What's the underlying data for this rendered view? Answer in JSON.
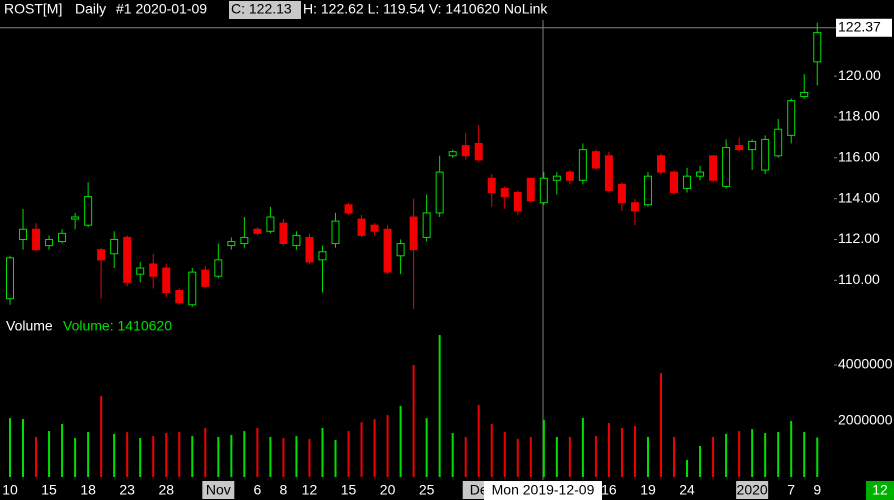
{
  "header": {
    "symbol": "ROST[M]",
    "period": "Daily",
    "bar": "#1 2020-01-09",
    "close": "C: 122.13",
    "rest": "H: 122.62 L: 119.54 V: 1410620 NoLink"
  },
  "corner_label": "12",
  "chart_data": [
    {
      "type": "candlestick",
      "up_color": "#00e000",
      "down_color": "#f00000",
      "ylim": [
        108.3,
        122.75
      ],
      "yticks": [
        {
          "value": 110,
          "label": "110.00"
        },
        {
          "value": 112,
          "label": "112.00"
        },
        {
          "value": 114,
          "label": "114.00"
        },
        {
          "value": 116,
          "label": "116.00"
        },
        {
          "value": 118,
          "label": "118.00"
        },
        {
          "value": 120,
          "label": "120.00"
        }
      ],
      "crosshair_price": {
        "value": 122.37,
        "label": "122.37"
      },
      "open": [
        109.1,
        112.0,
        112.5,
        111.7,
        111.9,
        113.0,
        112.7,
        111.5,
        111.3,
        112.1,
        110.3,
        110.8,
        110.6,
        109.5,
        108.8,
        110.5,
        110.2,
        111.7,
        111.8,
        112.5,
        112.4,
        112.8,
        111.7,
        112.1,
        111.0,
        111.8,
        113.7,
        113.0,
        112.7,
        112.5,
        111.2,
        113.1,
        112.1,
        113.3,
        116.1,
        116.6,
        116.7,
        115.0,
        114.5,
        114.3,
        115.0,
        113.8,
        114.9,
        115.3,
        114.9,
        116.3,
        116.1,
        114.7,
        113.8,
        113.7,
        116.1,
        115.3,
        114.5,
        115.1,
        116.1,
        114.6,
        116.6,
        116.4,
        115.4,
        116.1,
        117.1,
        119.0,
        120.7
      ],
      "high": [
        111.2,
        113.5,
        112.8,
        112.2,
        112.5,
        113.3,
        114.8,
        111.6,
        112.4,
        112.2,
        110.9,
        111.3,
        110.8,
        109.6,
        110.6,
        110.7,
        111.8,
        112.1,
        113.1,
        112.6,
        113.6,
        113.0,
        112.4,
        112.3,
        111.7,
        113.3,
        113.8,
        113.2,
        112.8,
        112.7,
        112.0,
        114.0,
        114.2,
        116.1,
        116.4,
        117.2,
        117.6,
        115.2,
        114.6,
        114.4,
        115.0,
        115.3,
        115.3,
        115.4,
        116.7,
        116.4,
        116.3,
        114.8,
        114.0,
        115.3,
        116.2,
        115.4,
        115.5,
        115.6,
        116.1,
        116.9,
        117.0,
        116.9,
        117.1,
        117.9,
        118.9,
        120.1,
        122.62
      ],
      "low": [
        108.8,
        111.5,
        111.4,
        111.5,
        111.8,
        112.5,
        112.6,
        109.1,
        110.6,
        109.7,
        109.9,
        109.6,
        109.2,
        108.8,
        108.7,
        109.6,
        110.1,
        111.5,
        111.6,
        112.2,
        112.3,
        111.7,
        111.5,
        110.8,
        109.4,
        111.6,
        113.2,
        112.1,
        112.2,
        110.3,
        110.3,
        108.6,
        111.9,
        113.1,
        116.0,
        115.9,
        115.8,
        113.6,
        113.5,
        113.2,
        113.8,
        113.7,
        114.2,
        114.7,
        114.7,
        115.4,
        114.3,
        113.4,
        112.7,
        113.6,
        115.2,
        114.2,
        114.3,
        114.9,
        114.8,
        114.5,
        116.3,
        115.4,
        115.2,
        116.0,
        116.7,
        118.9,
        119.54
      ],
      "close": [
        111.1,
        112.5,
        111.5,
        112.0,
        112.3,
        113.1,
        114.1,
        111.0,
        112.0,
        109.9,
        110.6,
        110.2,
        109.4,
        108.9,
        110.4,
        109.7,
        111.0,
        111.9,
        112.1,
        112.3,
        113.1,
        111.8,
        112.2,
        110.9,
        111.4,
        112.9,
        113.3,
        112.2,
        112.4,
        110.4,
        111.8,
        111.5,
        113.3,
        115.3,
        116.3,
        116.1,
        115.9,
        114.3,
        114.1,
        113.4,
        113.9,
        115.0,
        115.1,
        114.9,
        116.4,
        115.5,
        114.4,
        113.8,
        113.4,
        115.1,
        115.3,
        114.3,
        115.1,
        115.3,
        114.9,
        116.5,
        116.4,
        116.8,
        116.9,
        117.4,
        118.8,
        119.2,
        122.13
      ]
    },
    {
      "type": "bar",
      "title": "Volume",
      "legend": "Volume: 1410620",
      "crosshair_date": "Mon 2019-12-09",
      "ylim": [
        0,
        5250000
      ],
      "yticks": [
        2000000,
        4000000
      ],
      "categories": [
        "10",
        null,
        null,
        "15",
        null,
        null,
        "18",
        null,
        null,
        "23",
        null,
        null,
        "28",
        null,
        null,
        null,
        "Nov",
        null,
        null,
        "6",
        null,
        "8",
        null,
        "12",
        null,
        null,
        "15",
        null,
        null,
        "20",
        null,
        null,
        "25",
        null,
        null,
        null,
        "De",
        null,
        null,
        null,
        null,
        null,
        null,
        null,
        null,
        null,
        "16",
        null,
        null,
        "19",
        null,
        null,
        "24",
        null,
        null,
        null,
        null,
        "2020",
        null,
        null,
        "7",
        null,
        "9"
      ],
      "values": [
        2100000,
        2070000,
        1430000,
        1640000,
        1890000,
        1390000,
        1610000,
        2890000,
        1540000,
        1600000,
        1390000,
        1460000,
        1570000,
        1610000,
        1460000,
        1750000,
        1430000,
        1500000,
        1640000,
        1750000,
        1430000,
        1390000,
        1460000,
        1360000,
        1750000,
        1320000,
        1640000,
        1960000,
        2070000,
        2210000,
        2540000,
        4000000,
        2100000,
        5070000,
        1570000,
        1430000,
        2570000,
        1890000,
        1610000,
        1360000,
        1430000,
        2040000,
        1430000,
        1430000,
        2110000,
        1460000,
        1930000,
        1750000,
        1820000,
        1430000,
        3710000,
        1430000,
        610000,
        1110000,
        1430000,
        1540000,
        1640000,
        1710000,
        1570000,
        1610000,
        2000000,
        1610000,
        1410620
      ]
    }
  ]
}
